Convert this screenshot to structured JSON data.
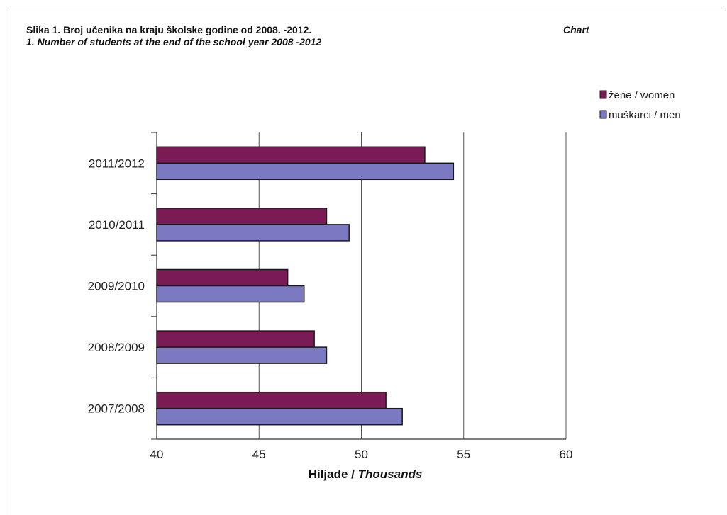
{
  "header": {
    "title_line1": "Slika 1. Broj učenika na kraju školske godine od 2008. -2012.",
    "title_line2": "1. Number of students at the end of the school year 2008 -2012",
    "chart_tag": "Chart"
  },
  "axis_title": {
    "main": "Hiljade / ",
    "italic": "Thousands"
  },
  "colors": {
    "women": "#7b1b56",
    "men": "#7a79c1",
    "bar_edge": "#1a1a1a",
    "grid": "#555555"
  },
  "chart_data": {
    "type": "bar",
    "orientation": "horizontal",
    "title": "Slika 1. Broj učenika na kraju školske godine od 2008. -2012. / 1. Number of students at the end of the school year 2008 -2012",
    "xlabel": "Hiljade / Thousands",
    "ylabel": "",
    "categories": [
      "2007/2008",
      "2008/2009",
      "2009/2010",
      "2010/2011",
      "2011/2012"
    ],
    "series": [
      {
        "name": "žene / women",
        "values": [
          51.2,
          47.7,
          46.4,
          48.3,
          53.1
        ]
      },
      {
        "name": "muškarci / men",
        "values": [
          52.0,
          48.3,
          47.2,
          49.4,
          54.5
        ]
      }
    ],
    "xlim": [
      40,
      60
    ],
    "xticks": [
      "40",
      "45",
      "50",
      "55",
      "60"
    ],
    "grid": "vertical",
    "legend": "top-right"
  }
}
